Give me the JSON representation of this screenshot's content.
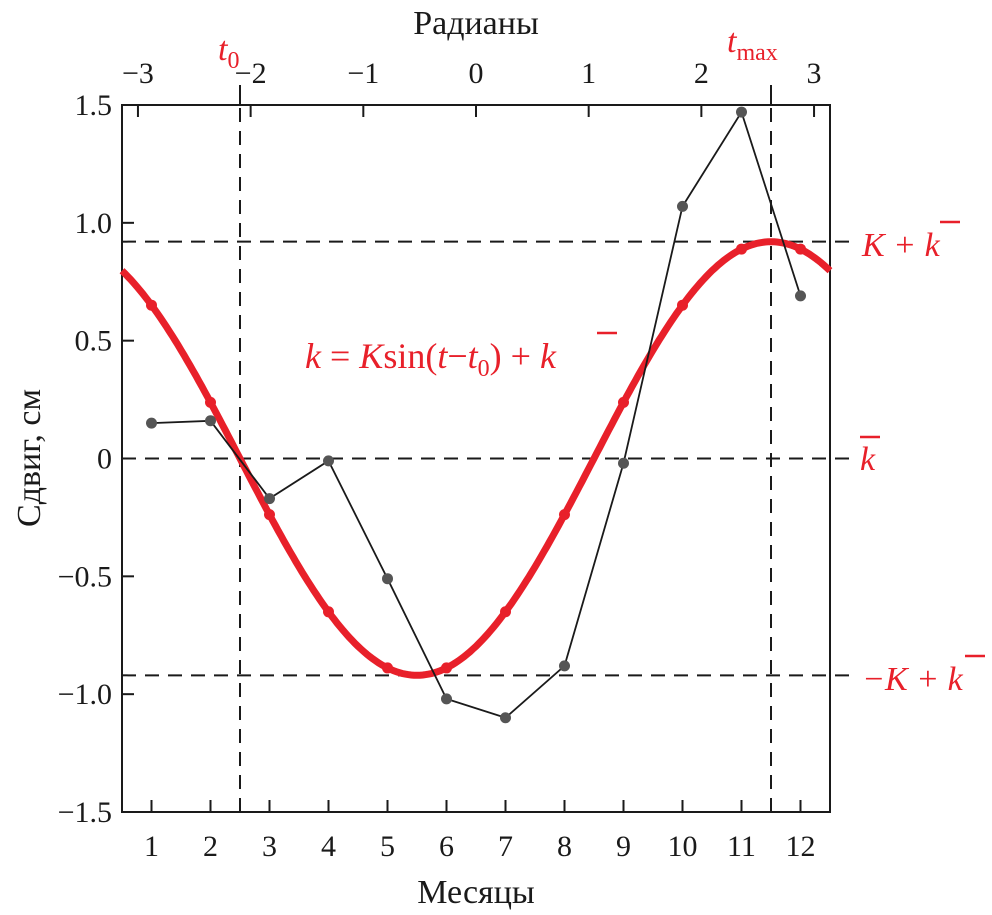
{
  "chart_data": {
    "type": "line",
    "xlabel": "Месяцы",
    "ylabel": "Сдвиг, см",
    "x2label": "Радианы",
    "xlim": [
      0.5,
      12.5
    ],
    "ylim": [
      -1.5,
      1.5
    ],
    "xticks": [
      1,
      2,
      3,
      4,
      5,
      6,
      7,
      8,
      9,
      10,
      11,
      12
    ],
    "yticks": [
      1.5,
      1.0,
      0.5,
      0,
      -0.5,
      -1.0,
      -1.5
    ],
    "ytick_labels": [
      "1.5",
      "1.0",
      "0.5",
      "0",
      "−0.5",
      "−1.0",
      "−1.5"
    ],
    "x2ticks": [
      -3,
      -2,
      -1,
      0,
      1,
      2,
      3
    ],
    "x2tick_labels": [
      "−3",
      "−2",
      "−1",
      "0",
      "1",
      "2",
      "3"
    ],
    "x2_relation": "radians = (month − 6.5)·π/6",
    "grid": false,
    "series": [
      {
        "kind": "observed",
        "color": "#555555",
        "x": [
          1,
          2,
          3,
          4,
          5,
          6,
          7,
          8,
          9,
          10,
          11,
          12
        ],
        "y": [
          0.15,
          0.16,
          -0.17,
          -0.01,
          -0.51,
          -1.02,
          -1.1,
          -0.88,
          -0.02,
          1.07,
          1.47,
          0.69
        ]
      },
      {
        "kind": "fit",
        "color": "#e8202a",
        "formula": "k = Ksin(t−t0) + k̄",
        "K": 0.92,
        "k_bar": 0.0,
        "t0_month": 2.5,
        "tmax_month": 11.5
      }
    ],
    "annotations": {
      "formula_k": "k",
      "formula_eq": " = ",
      "formula_K": "K",
      "formula_sin": "sin(",
      "formula_t": "t",
      "formula_minus": "−",
      "formula_t0": "t",
      "formula_sub0": "0",
      "formula_close": ") + ",
      "formula_kbar": "k",
      "t0_label": "t",
      "t0_sub": "0",
      "tmax_label": "t",
      "tmax_sub": "max",
      "upper_K": "K + ",
      "upper_k": "k",
      "mean_k": "k",
      "lower_K": "−K + ",
      "lower_k": "k"
    },
    "reference_lines": {
      "horizontal": [
        0.92,
        0.0,
        -0.92
      ],
      "vertical_months": [
        2.5,
        11.5
      ]
    }
  }
}
